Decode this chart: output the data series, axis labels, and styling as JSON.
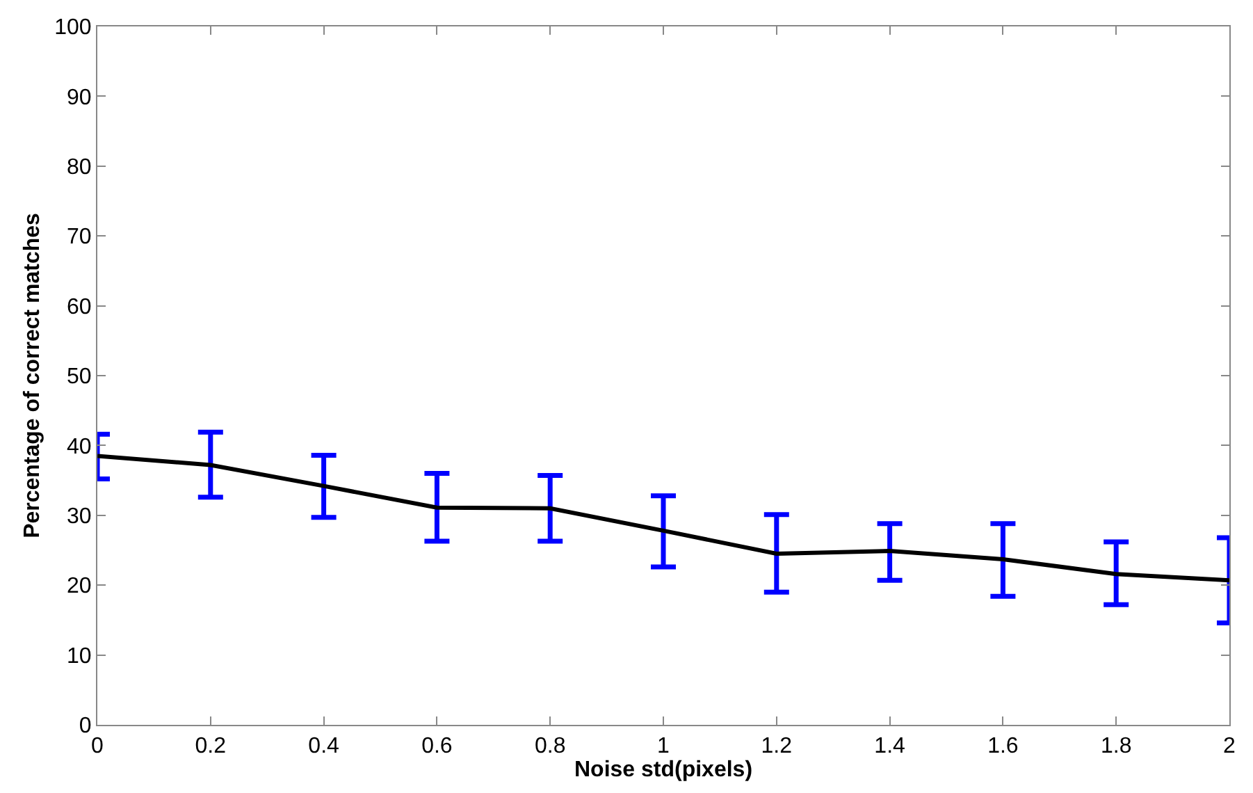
{
  "chart_data": {
    "type": "line",
    "xlabel": "Noise std(pixels)",
    "ylabel": "Percentage of correct matches",
    "x": [
      0,
      0.2,
      0.4,
      0.6,
      0.8,
      1,
      1.2,
      1.4,
      1.6,
      1.8,
      2
    ],
    "series": [
      {
        "color": "#000000",
        "values": [
          38.5,
          37.2,
          34.2,
          31.1,
          31.0,
          27.8,
          24.5,
          24.9,
          23.7,
          21.6,
          20.7
        ],
        "errors": [
          [
            35.2,
            41.6
          ],
          [
            32.6,
            41.9
          ],
          [
            29.7,
            38.6
          ],
          [
            26.3,
            36.0
          ],
          [
            26.3,
            35.7
          ],
          [
            22.6,
            32.8
          ],
          [
            19.0,
            30.1
          ],
          [
            20.7,
            28.8
          ],
          [
            18.4,
            28.8
          ],
          [
            17.2,
            26.2
          ],
          [
            14.6,
            26.8
          ]
        ]
      }
    ],
    "xlim": [
      0,
      2
    ],
    "ylim": [
      0,
      100
    ],
    "xticks": [
      0,
      0.2,
      0.4,
      0.6,
      0.8,
      1,
      1.2,
      1.4,
      1.6,
      1.8,
      2
    ],
    "yticks": [
      0,
      10,
      20,
      30,
      40,
      50,
      60,
      70,
      80,
      90,
      100
    ],
    "marker": "none",
    "line_style": "solid"
  }
}
